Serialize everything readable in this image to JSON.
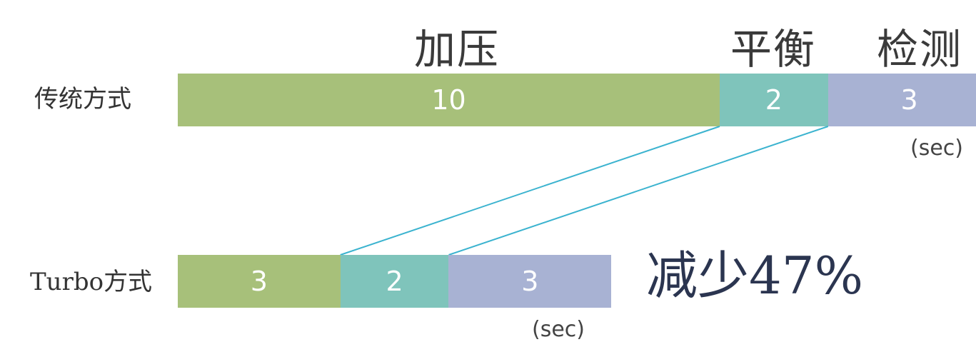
{
  "chart_data": {
    "type": "bar",
    "orientation": "horizontal-stacked",
    "phases": [
      "加压",
      "平衡",
      "检测"
    ],
    "colors": [
      "#a7c07a",
      "#7fc4bb",
      "#a8b2d3"
    ],
    "unit": "(sec)",
    "rows": [
      {
        "label": "传统方式",
        "values": [
          10,
          2,
          3
        ]
      },
      {
        "label": "Turbo方式",
        "values": [
          3,
          2,
          3
        ]
      }
    ],
    "annotation": "减少47%"
  }
}
